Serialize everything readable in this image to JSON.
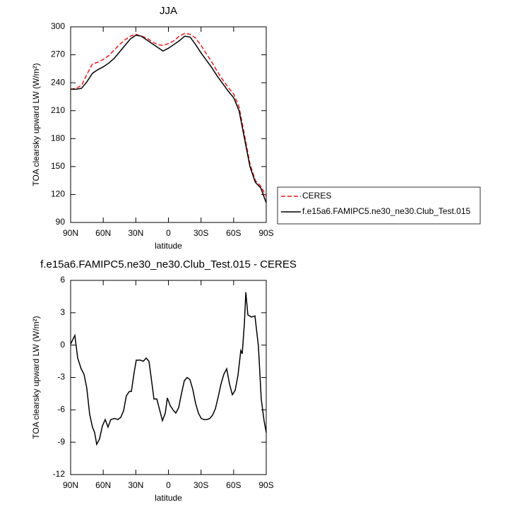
{
  "chart_data": [
    {
      "type": "line",
      "title": "JJA",
      "ylabel": "TOA clearsky upward LW (W/m²)",
      "xlabel": "latitude",
      "xlim": [
        90,
        -90
      ],
      "ylim": [
        90,
        300
      ],
      "xticks": [
        {
          "value": 90,
          "label": "90N"
        },
        {
          "value": 60,
          "label": "60N"
        },
        {
          "value": 30,
          "label": "30N"
        },
        0,
        {
          "value": -30,
          "label": "30S"
        },
        {
          "value": -60,
          "label": "60S"
        },
        {
          "value": -90,
          "label": "90S"
        }
      ],
      "yticks": [
        90,
        120,
        150,
        180,
        210,
        240,
        270,
        300
      ],
      "legend": "right",
      "x": [
        90,
        85,
        80,
        75,
        70,
        65,
        60,
        55,
        50,
        45,
        40,
        35,
        30,
        25,
        20,
        15,
        10,
        5,
        0,
        -5,
        -10,
        -15,
        -20,
        -25,
        -30,
        -35,
        -40,
        -45,
        -50,
        -55,
        -60,
        -65,
        -70,
        -75,
        -80,
        -85,
        -90
      ],
      "series": [
        {
          "name": "CERES",
          "color": "#e41a1c",
          "dashed": true,
          "values": [
            233,
            234,
            237,
            249,
            260,
            262,
            265,
            269,
            275,
            281,
            286,
            290,
            292,
            290,
            288,
            284,
            281,
            280,
            282,
            285,
            290,
            293,
            292,
            288,
            280,
            271,
            262,
            252,
            243,
            235,
            228,
            214,
            184,
            153,
            135,
            129,
            118
          ]
        },
        {
          "name": "f.e15a6.FAMIPC5.ne30_ne30.Club_Test.015",
          "color": "#000000",
          "dashed": false,
          "values": [
            233,
            233,
            234,
            241,
            250,
            254,
            257,
            261,
            266,
            273,
            280,
            287,
            291,
            290,
            286,
            282,
            278,
            274,
            277,
            281,
            285,
            290,
            289,
            281,
            272,
            264,
            256,
            247,
            239,
            231,
            224,
            210,
            180,
            150,
            133,
            127,
            111
          ]
        }
      ]
    },
    {
      "type": "line",
      "title": "f.e15a6.FAMIPC5.ne30_ne30.Club_Test.015 - CERES",
      "ylabel": "TOA clearsky upward LW (W/m²)",
      "xlabel": "latitude",
      "xlim": [
        90,
        -90
      ],
      "ylim": [
        -12,
        6
      ],
      "xticks": [
        {
          "value": 90,
          "label": "90N"
        },
        {
          "value": 60,
          "label": "60N"
        },
        {
          "value": 30,
          "label": "30N"
        },
        0,
        {
          "value": -30,
          "label": "30S"
        },
        {
          "value": -60,
          "label": "60S"
        },
        {
          "value": -90,
          "label": "90S"
        }
      ],
      "yticks": [
        -12,
        -9,
        -6,
        -3,
        0,
        3,
        6
      ],
      "color": "#000000",
      "x": [
        90,
        86.1,
        83.5,
        80.3,
        77.7,
        75.1,
        72.5,
        69.9,
        67.9,
        66,
        63.4,
        60.8,
        58.2,
        55.6,
        53,
        49.7,
        46.5,
        43.9,
        41.3,
        38.7,
        36,
        34.1,
        31.5,
        29.6,
        25.7,
        23.1,
        20.5,
        17.9,
        15.9,
        13.3,
        10.7,
        8.1,
        5.5,
        2.9,
        1,
        -1.6,
        -4.2,
        -6.8,
        -9.4,
        -12,
        -14.6,
        -17.2,
        -19.8,
        -22.4,
        -25,
        -27.6,
        -30.2,
        -32.8,
        -35.4,
        -38,
        -40.6,
        -43.2,
        -45.8,
        -48.4,
        -51,
        -53.6,
        -56.2,
        -58.8,
        -61.4,
        -64,
        -66.6,
        -67.9,
        -69.9,
        -71.2,
        -73.1,
        -76.4,
        -79.6,
        -82.8,
        -85.4,
        -88,
        -90
      ],
      "values": [
        0.1,
        0.9,
        -1.2,
        -2.2,
        -2.7,
        -4.0,
        -6.4,
        -7.6,
        -8.1,
        -9.2,
        -8.7,
        -7.5,
        -6.9,
        -7.6,
        -6.9,
        -6.8,
        -6.9,
        -6.7,
        -6.1,
        -4.7,
        -4.3,
        -4.3,
        -2.5,
        -1.4,
        -1.4,
        -1.5,
        -1.2,
        -1.5,
        -3.0,
        -5.0,
        -5.0,
        -6.0,
        -7.0,
        -6.3,
        -4.9,
        -5.6,
        -6.0,
        -6.3,
        -5.8,
        -4.5,
        -3.3,
        -3.0,
        -3.2,
        -4.1,
        -5.4,
        -6.3,
        -6.8,
        -6.9,
        -6.9,
        -6.8,
        -6.5,
        -5.9,
        -4.8,
        -3.6,
        -2.7,
        -2.2,
        -3.6,
        -4.6,
        -4.2,
        -2.8,
        -0.5,
        -0.8,
        2.0,
        4.9,
        2.8,
        2.6,
        2.7,
        -0.1,
        -5.0,
        -7.0,
        -8.1
      ]
    }
  ]
}
